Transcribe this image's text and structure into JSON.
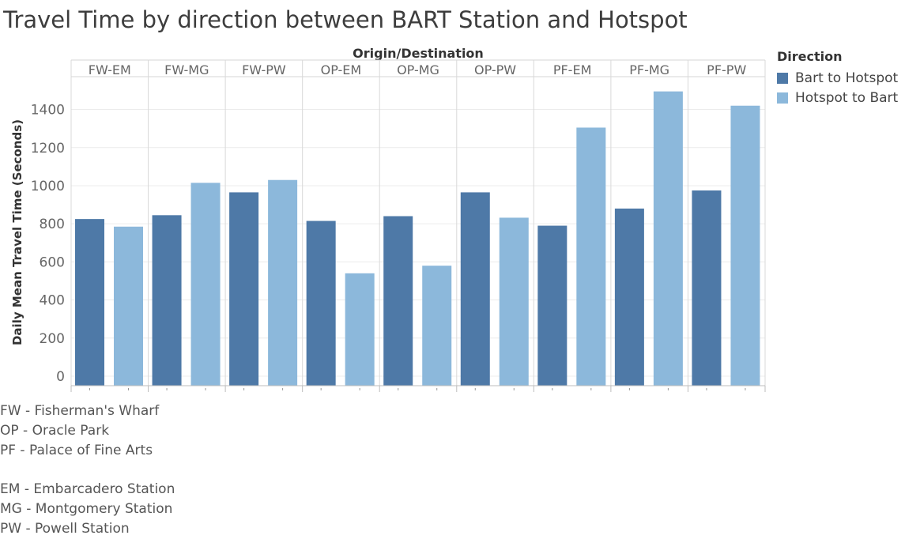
{
  "title": "Travel Time by direction between BART Station and Hotspot",
  "legend": {
    "title": "Direction",
    "items": [
      {
        "label": "Bart to Hotspot",
        "color": "#4e79a7"
      },
      {
        "label": "Hotspot to Bart",
        "color": "#8cb8db"
      }
    ]
  },
  "notes": [
    "FW - Fisherman's Wharf",
    "OP - Oracle Park",
    "PF - Palace of Fine Arts",
    "",
    "EM - Embarcadero Station",
    "MG - Montgomery Station",
    "PW - Powell Station"
  ],
  "chart_data": {
    "type": "bar",
    "title": "Travel Time by direction between BART Station and Hotspot",
    "xlabel": "Origin/Destination",
    "ylabel": "Daily Mean Travel Time (Seconds)",
    "categories": [
      "FW-EM",
      "FW-MG",
      "FW-PW",
      "OP-EM",
      "OP-MG",
      "OP-PW",
      "PF-EM",
      "PF-MG",
      "PF-PW"
    ],
    "series": [
      {
        "name": "Bart to Hotspot",
        "color": "#4e79a7",
        "values": [
          825,
          845,
          965,
          815,
          840,
          965,
          790,
          880,
          975
        ]
      },
      {
        "name": "Hotspot to Bart",
        "color": "#8cb8db",
        "values": [
          785,
          1015,
          1030,
          540,
          580,
          832,
          1305,
          1495,
          1420
        ]
      }
    ],
    "yticks": [
      0,
      200,
      400,
      600,
      800,
      1000,
      1200,
      1400
    ],
    "ylim": [
      -50,
      1560
    ],
    "grid": true,
    "legend_position": "top-right"
  }
}
